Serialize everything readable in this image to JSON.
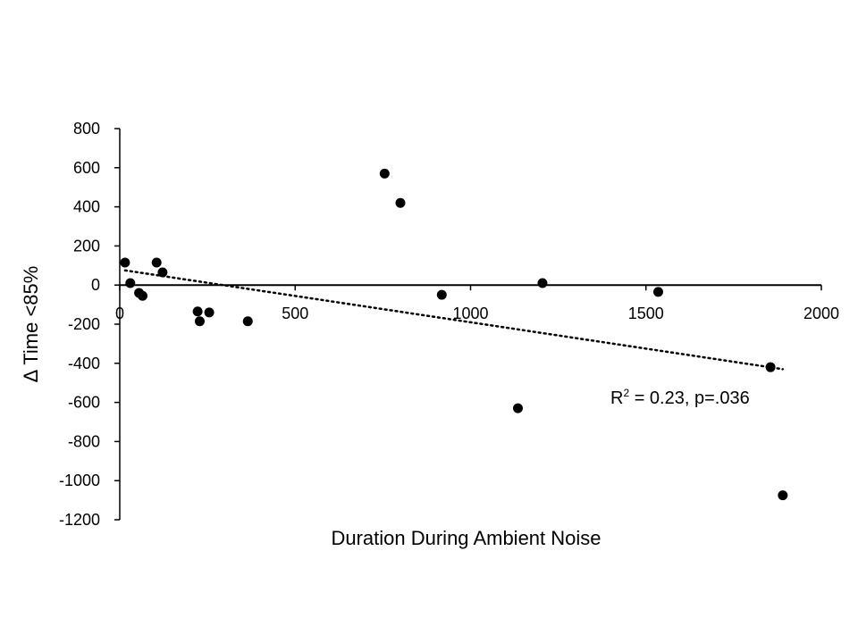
{
  "chart_data": {
    "type": "scatter",
    "title": "",
    "xlabel": "Duration During Ambient Noise",
    "ylabel": "Δ Time <85%",
    "xlim": [
      0,
      2000
    ],
    "ylim": [
      -1200,
      800
    ],
    "x_ticks": [
      0,
      500,
      1000,
      1500,
      2000
    ],
    "y_ticks": [
      800,
      600,
      400,
      200,
      0,
      -200,
      -400,
      -600,
      -800,
      -1000,
      -1200
    ],
    "grid": false,
    "legend": "none",
    "marker_color": "#000000",
    "points": [
      {
        "x": 15,
        "y": 115
      },
      {
        "x": 30,
        "y": 10
      },
      {
        "x": 55,
        "y": -40
      },
      {
        "x": 65,
        "y": -55
      },
      {
        "x": 105,
        "y": 115
      },
      {
        "x": 122,
        "y": 65
      },
      {
        "x": 222,
        "y": -135
      },
      {
        "x": 228,
        "y": -185
      },
      {
        "x": 255,
        "y": -140
      },
      {
        "x": 365,
        "y": -185
      },
      {
        "x": 755,
        "y": 570
      },
      {
        "x": 800,
        "y": 420
      },
      {
        "x": 918,
        "y": -50
      },
      {
        "x": 1135,
        "y": -630
      },
      {
        "x": 1205,
        "y": 10
      },
      {
        "x": 1535,
        "y": -35
      },
      {
        "x": 1855,
        "y": -420
      },
      {
        "x": 1890,
        "y": -1075
      }
    ],
    "trendline": {
      "style": "dotted",
      "x": [
        15,
        1890
      ],
      "y": [
        75,
        -430
      ]
    },
    "annotation": {
      "prefix": "R",
      "sup": "2",
      "suffix": " = 0.23, p=.036"
    }
  }
}
